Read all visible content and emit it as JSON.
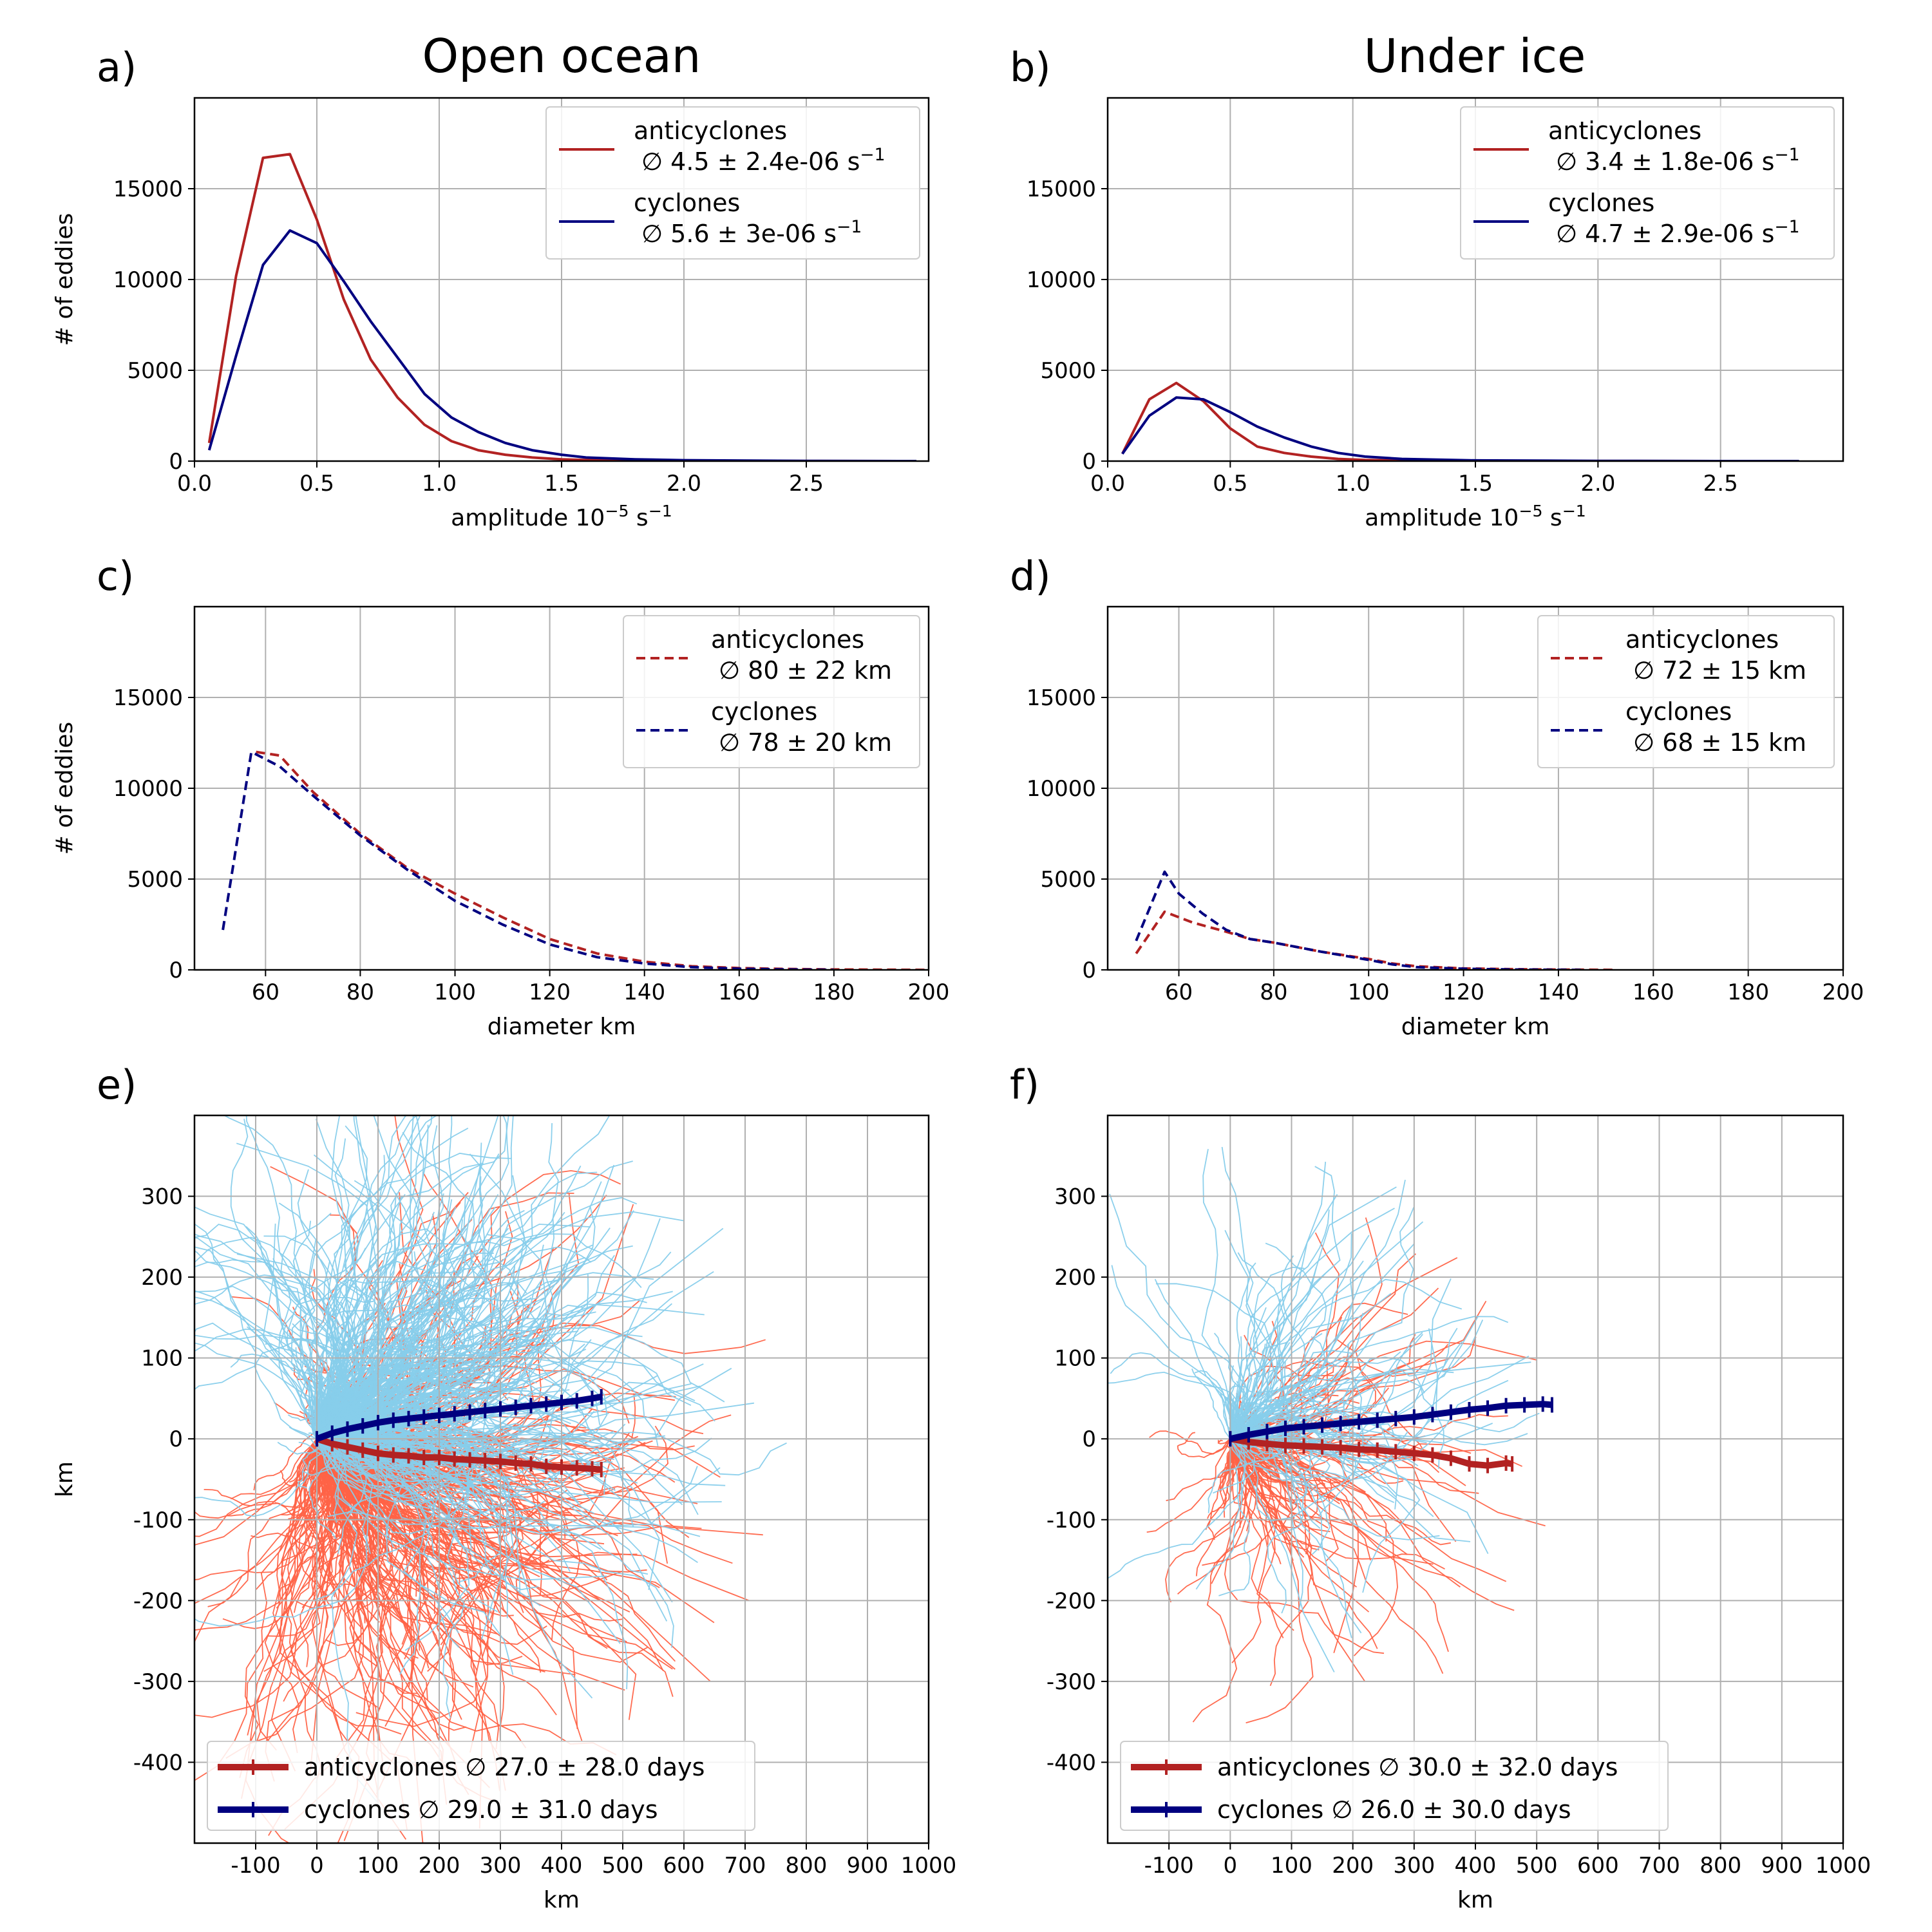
{
  "colors": {
    "anticyclone": "#b22222",
    "cyclone": "#000080",
    "anticyclone_track": "#ff6347",
    "cyclone_track": "#87ceeb",
    "grid": "#b0b0b0"
  },
  "titles": {
    "open_ocean": "Open ocean",
    "under_ice": "Under ice"
  },
  "chart_data": [
    {
      "panel": "a)",
      "title": "Open ocean",
      "type": "line",
      "xlabel": "amplitude 10⁻⁵ s⁻¹",
      "ylabel": "# of eddies",
      "xlim": [
        0,
        3.0
      ],
      "ylim": [
        0,
        20000
      ],
      "xticks": [
        0.0,
        0.5,
        1.0,
        1.5,
        2.0,
        2.5
      ],
      "xtick_labels": [
        "0.0",
        "0.5",
        "1.0",
        "1.5",
        "2.0",
        "2.5"
      ],
      "yticks": [
        0,
        5000,
        10000,
        15000
      ],
      "ytick_labels": [
        "0",
        "5000",
        "10000",
        "15000"
      ],
      "legend": "top-right",
      "series": [
        {
          "name": "anticyclones",
          "stat": "∅ 4.5 ± 2.4e-06 s⁻¹",
          "style": "solid",
          "x": [
            0.06,
            0.17,
            0.28,
            0.39,
            0.5,
            0.61,
            0.72,
            0.83,
            0.94,
            1.05,
            1.16,
            1.27,
            1.38,
            1.5,
            1.6,
            1.8,
            2.0,
            2.5,
            2.95
          ],
          "y": [
            1000,
            10200,
            16700,
            16900,
            13300,
            8900,
            5600,
            3500,
            2000,
            1100,
            600,
            350,
            200,
            100,
            60,
            30,
            10,
            5,
            0
          ]
        },
        {
          "name": "cyclones",
          "stat": "∅ 5.6 ± 3e-06 s⁻¹",
          "style": "solid",
          "x": [
            0.06,
            0.17,
            0.28,
            0.39,
            0.5,
            0.61,
            0.72,
            0.83,
            0.94,
            1.05,
            1.16,
            1.27,
            1.38,
            1.5,
            1.6,
            1.8,
            2.0,
            2.5,
            2.95
          ],
          "y": [
            600,
            5800,
            10800,
            12700,
            12000,
            9900,
            7700,
            5700,
            3700,
            2400,
            1600,
            1000,
            600,
            350,
            200,
            100,
            50,
            10,
            0
          ]
        }
      ]
    },
    {
      "panel": "b)",
      "title": "Under ice",
      "type": "line",
      "xlabel": "amplitude 10⁻⁵ s⁻¹",
      "ylabel": "",
      "xlim": [
        0,
        3.0
      ],
      "ylim": [
        0,
        20000
      ],
      "xticks": [
        0.0,
        0.5,
        1.0,
        1.5,
        2.0,
        2.5
      ],
      "xtick_labels": [
        "0.0",
        "0.5",
        "1.0",
        "1.5",
        "2.0",
        "2.5"
      ],
      "yticks": [
        0,
        5000,
        10000,
        15000
      ],
      "ytick_labels": [
        "0",
        "5000",
        "10000",
        "15000"
      ],
      "legend": "top-right",
      "series": [
        {
          "name": "anticyclones",
          "stat": "∅ 3.4 ± 1.8e-06 s⁻¹",
          "style": "solid",
          "x": [
            0.06,
            0.17,
            0.28,
            0.39,
            0.5,
            0.61,
            0.72,
            0.83,
            0.94,
            1.05,
            1.2,
            1.5,
            2.0,
            2.5
          ],
          "y": [
            400,
            3400,
            4300,
            3300,
            1800,
            800,
            450,
            250,
            120,
            60,
            30,
            10,
            5,
            0
          ]
        },
        {
          "name": "cyclones",
          "stat": "∅ 4.7 ± 2.9e-06 s⁻¹",
          "style": "solid",
          "x": [
            0.06,
            0.17,
            0.28,
            0.39,
            0.5,
            0.61,
            0.72,
            0.83,
            0.94,
            1.05,
            1.2,
            1.5,
            2.0,
            2.5,
            2.7,
            2.82
          ],
          "y": [
            400,
            2500,
            3500,
            3400,
            2700,
            1900,
            1300,
            800,
            450,
            250,
            120,
            40,
            10,
            0,
            0,
            0
          ]
        }
      ]
    },
    {
      "panel": "c)",
      "title": "",
      "type": "line",
      "xlabel": "diameter km",
      "ylabel": "# of eddies",
      "xlim": [
        45,
        200
      ],
      "ylim": [
        0,
        20000
      ],
      "xticks": [
        60,
        80,
        100,
        120,
        140,
        160,
        180,
        200
      ],
      "xtick_labels": [
        "60",
        "80",
        "100",
        "120",
        "140",
        "160",
        "180",
        "200"
      ],
      "yticks": [
        0,
        5000,
        10000,
        15000
      ],
      "ytick_labels": [
        "0",
        "5000",
        "10000",
        "15000"
      ],
      "legend": "top-right",
      "series": [
        {
          "name": "anticyclones",
          "stat": "∅ 80 ± 22 km",
          "style": "dashed",
          "x": [
            58,
            63,
            70,
            80,
            90,
            100,
            110,
            120,
            130,
            140,
            150,
            160,
            170,
            180,
            190,
            200
          ],
          "y": [
            12000,
            11800,
            9800,
            7500,
            5600,
            4200,
            2900,
            1700,
            900,
            450,
            200,
            100,
            50,
            20,
            10,
            0
          ]
        },
        {
          "name": "cyclones",
          "stat": "∅ 78 ± 20 km",
          "style": "dashed",
          "x": [
            51,
            57,
            63,
            70,
            80,
            90,
            100,
            110,
            120,
            130,
            140,
            150,
            160,
            170,
            180
          ],
          "y": [
            2200,
            12000,
            11200,
            9600,
            7400,
            5500,
            3800,
            2500,
            1400,
            700,
            350,
            150,
            60,
            20,
            0
          ]
        }
      ]
    },
    {
      "panel": "d)",
      "title": "",
      "type": "line",
      "xlabel": "diameter km",
      "ylabel": "",
      "xlim": [
        45,
        200
      ],
      "ylim": [
        0,
        20000
      ],
      "xticks": [
        60,
        80,
        100,
        120,
        140,
        160,
        180,
        200
      ],
      "xtick_labels": [
        "60",
        "80",
        "100",
        "120",
        "140",
        "160",
        "180",
        "200"
      ],
      "yticks": [
        0,
        5000,
        10000,
        15000
      ],
      "ytick_labels": [
        "0",
        "5000",
        "10000",
        "15000"
      ],
      "legend": "top-right",
      "series": [
        {
          "name": "anticyclones",
          "stat": "∅ 72 ± 15 km",
          "style": "dashed",
          "x": [
            51,
            57,
            63,
            70,
            75,
            80,
            90,
            100,
            105,
            110,
            120,
            130,
            140,
            145,
            152
          ],
          "y": [
            900,
            3200,
            2600,
            2100,
            1700,
            1500,
            1000,
            600,
            350,
            200,
            80,
            40,
            15,
            10,
            0
          ]
        },
        {
          "name": "cyclones",
          "stat": "∅ 68 ± 15 km",
          "style": "dashed",
          "x": [
            51,
            57,
            60,
            65,
            70,
            75,
            80,
            90,
            100,
            105,
            110,
            120,
            130,
            140,
            145
          ],
          "y": [
            1600,
            5400,
            4200,
            3100,
            2200,
            1700,
            1500,
            1000,
            550,
            300,
            150,
            60,
            20,
            5,
            0
          ]
        }
      ]
    },
    {
      "panel": "e)",
      "title": "",
      "type": "line",
      "xlabel": "km",
      "ylabel": "km",
      "xlim": [
        -200,
        1000
      ],
      "ylim": [
        -500,
        400
      ],
      "xticks": [
        -100,
        0,
        100,
        200,
        300,
        400,
        500,
        600,
        700,
        800,
        900,
        1000
      ],
      "xtick_labels": [
        "-100",
        "0",
        "100",
        "200",
        "300",
        "400",
        "500",
        "600",
        "700",
        "800",
        "900",
        "1000"
      ],
      "yticks": [
        -400,
        -300,
        -200,
        -100,
        0,
        100,
        200,
        300
      ],
      "ytick_labels": [
        "-400",
        "-300",
        "-200",
        "-100",
        "0",
        "100",
        "200",
        "300"
      ],
      "legend": "lower-left",
      "tracks": {
        "count": 560,
        "max_x": 1000,
        "y_spread": 190
      },
      "series": [
        {
          "name": "anticyclones",
          "stat": "∅ 27.0 ± 28.0 days",
          "x": [
            0,
            25,
            50,
            75,
            100,
            125,
            150,
            175,
            200,
            225,
            250,
            275,
            300,
            325,
            350,
            375,
            400,
            425,
            450,
            465
          ],
          "y": [
            0,
            -6,
            -10,
            -14,
            -18,
            -20,
            -21,
            -23,
            -23,
            -25,
            -26,
            -27,
            -28,
            -30,
            -31,
            -34,
            -35,
            -36,
            -37,
            -38
          ]
        },
        {
          "name": "cyclones",
          "stat": "∅ 29.0 ± 31.0 days",
          "x": [
            0,
            25,
            50,
            75,
            100,
            125,
            150,
            175,
            200,
            225,
            250,
            275,
            300,
            325,
            350,
            375,
            400,
            425,
            450,
            465
          ],
          "y": [
            0,
            7,
            12,
            16,
            20,
            23,
            25,
            27,
            29,
            31,
            33,
            35,
            37,
            39,
            41,
            43,
            45,
            47,
            50,
            52
          ]
        }
      ]
    },
    {
      "panel": "f)",
      "title": "",
      "type": "line",
      "xlabel": "km",
      "ylabel": "",
      "xlim": [
        -200,
        1000
      ],
      "ylim": [
        -500,
        400
      ],
      "xticks": [
        -100,
        0,
        100,
        200,
        300,
        400,
        500,
        600,
        700,
        800,
        900,
        1000
      ],
      "xtick_labels": [
        "-100",
        "0",
        "100",
        "200",
        "300",
        "400",
        "500",
        "600",
        "700",
        "800",
        "900",
        "1000"
      ],
      "yticks": [
        -400,
        -300,
        -200,
        -100,
        0,
        100,
        200,
        300
      ],
      "ytick_labels": [
        "-400",
        "-300",
        "-200",
        "-100",
        "0",
        "100",
        "200",
        "300"
      ],
      "legend": "lower-left",
      "tracks": {
        "count": 170,
        "max_x": 700,
        "y_spread": 110
      },
      "series": [
        {
          "name": "anticyclones",
          "stat": "∅ 30.0 ± 32.0 days",
          "x": [
            0,
            30,
            60,
            90,
            120,
            150,
            180,
            210,
            240,
            270,
            300,
            330,
            360,
            390,
            420,
            450,
            460
          ],
          "y": [
            0,
            -4,
            -6,
            -8,
            -9,
            -10,
            -11,
            -13,
            -14,
            -16,
            -18,
            -20,
            -24,
            -31,
            -33,
            -30,
            -31
          ]
        },
        {
          "name": "cyclones",
          "stat": "∅ 26.0 ± 30.0 days",
          "x": [
            0,
            30,
            60,
            90,
            120,
            150,
            180,
            210,
            240,
            270,
            300,
            330,
            360,
            390,
            420,
            450,
            480,
            510,
            525
          ],
          "y": [
            0,
            5,
            9,
            13,
            15,
            17,
            19,
            21,
            23,
            25,
            27,
            30,
            33,
            36,
            38,
            41,
            42,
            43,
            42
          ]
        }
      ]
    }
  ]
}
